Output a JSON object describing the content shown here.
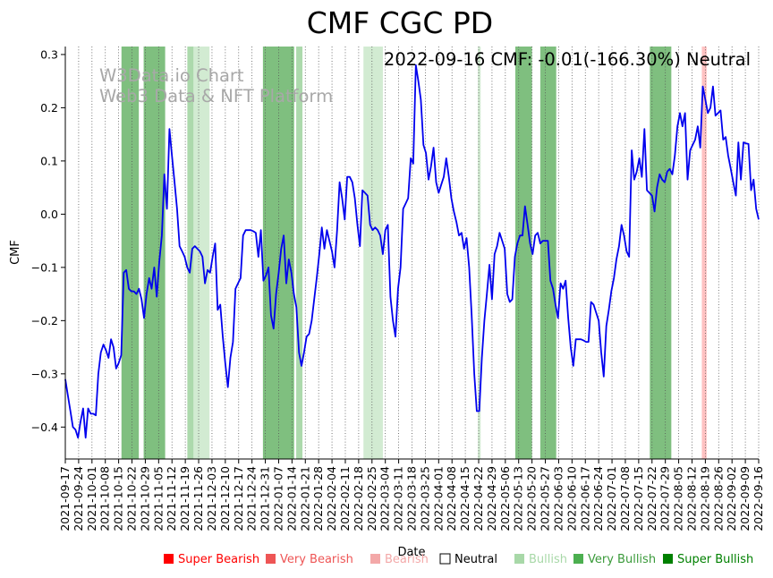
{
  "chart_data": {
    "type": "line",
    "title": "CMF CGC PD",
    "xlabel": "Date",
    "ylabel": "CMF",
    "status_text": "2022-09-16 CMF: -0.01(-166.30%) Neutral",
    "watermark": [
      "W3Data.io Chart",
      "Web3 Data & NFT Platform"
    ],
    "ylim": [
      -0.46,
      0.315
    ],
    "yticks": [
      -0.4,
      -0.3,
      -0.2,
      -0.1,
      0.0,
      0.1,
      0.2,
      0.3
    ],
    "ytick_labels": [
      "−0.4",
      "−0.3",
      "−0.2",
      "−0.1",
      "0.0",
      "0.1",
      "0.2",
      "0.3"
    ],
    "x_start": "2021-09-17",
    "x_end": "2022-09-16",
    "xtick_labels": [
      "2021-09-17",
      "2021-09-24",
      "2021-10-01",
      "2021-10-08",
      "2021-10-15",
      "2021-10-22",
      "2021-10-29",
      "2021-11-05",
      "2021-11-12",
      "2021-11-19",
      "2021-11-26",
      "2021-12-03",
      "2021-12-10",
      "2021-12-17",
      "2021-12-24",
      "2021-12-31",
      "2022-01-07",
      "2022-01-14",
      "2022-01-21",
      "2022-01-28",
      "2022-02-04",
      "2022-02-11",
      "2022-02-18",
      "2022-02-25",
      "2022-03-04",
      "2022-03-11",
      "2022-03-18",
      "2022-03-25",
      "2022-04-01",
      "2022-04-08",
      "2022-04-15",
      "2022-04-22",
      "2022-04-29",
      "2022-05-06",
      "2022-05-13",
      "2022-05-20",
      "2022-05-27",
      "2022-06-03",
      "2022-06-10",
      "2022-06-17",
      "2022-06-24",
      "2022-07-01",
      "2022-07-08",
      "2022-07-15",
      "2022-07-22",
      "2022-07-29",
      "2022-08-05",
      "2022-08-12",
      "2022-08-19",
      "2022-08-26",
      "2022-09-02",
      "2022-09-09",
      "2022-09-16"
    ],
    "grid": "vertical-dotted",
    "line_color": "#0000ee",
    "series": [
      {
        "name": "CMF",
        "values": [
          -0.31,
          -0.34,
          -0.37,
          -0.4,
          -0.405,
          -0.42,
          -0.39,
          -0.365,
          -0.42,
          -0.365,
          -0.375,
          -0.375,
          -0.378,
          -0.3,
          -0.26,
          -0.245,
          -0.255,
          -0.27,
          -0.235,
          -0.25,
          -0.29,
          -0.28,
          -0.265,
          -0.11,
          -0.105,
          -0.14,
          -0.145,
          -0.145,
          -0.15,
          -0.14,
          -0.16,
          -0.195,
          -0.15,
          -0.12,
          -0.14,
          -0.1,
          -0.155,
          -0.09,
          -0.04,
          0.075,
          0.01,
          0.16,
          0.11,
          0.06,
          0.01,
          -0.06,
          -0.07,
          -0.08,
          -0.1,
          -0.11,
          -0.065,
          -0.06,
          -0.065,
          -0.07,
          -0.08,
          -0.13,
          -0.105,
          -0.11,
          -0.08,
          -0.055,
          -0.18,
          -0.17,
          -0.23,
          -0.28,
          -0.325,
          -0.27,
          -0.24,
          -0.14,
          -0.13,
          -0.12,
          -0.04,
          -0.03,
          -0.03,
          -0.03,
          -0.032,
          -0.035,
          -0.08,
          -0.03,
          -0.125,
          -0.115,
          -0.1,
          -0.19,
          -0.215,
          -0.15,
          -0.11,
          -0.065,
          -0.04,
          -0.13,
          -0.085,
          -0.11,
          -0.15,
          -0.175,
          -0.26,
          -0.285,
          -0.26,
          -0.23,
          -0.225,
          -0.2,
          -0.16,
          -0.12,
          -0.075,
          -0.025,
          -0.065,
          -0.03,
          -0.05,
          -0.07,
          -0.1,
          -0.03,
          0.06,
          0.03,
          -0.01,
          0.07,
          0.07,
          0.06,
          0.03,
          -0.02,
          -0.06,
          0.045,
          0.04,
          0.035,
          -0.02,
          -0.03,
          -0.025,
          -0.03,
          -0.04,
          -0.075,
          -0.03,
          -0.02,
          -0.155,
          -0.2,
          -0.23,
          -0.14,
          -0.1,
          0.01,
          0.02,
          0.03,
          0.105,
          0.095,
          0.28,
          0.25,
          0.215,
          0.13,
          0.115,
          0.065,
          0.09,
          0.125,
          0.06,
          0.04,
          0.055,
          0.07,
          0.105,
          0.07,
          0.03,
          0.005,
          -0.015,
          -0.04,
          -0.035,
          -0.065,
          -0.045,
          -0.1,
          -0.19,
          -0.3,
          -0.37,
          -0.37,
          -0.27,
          -0.2,
          -0.15,
          -0.095,
          -0.16,
          -0.075,
          -0.06,
          -0.035,
          -0.05,
          -0.065,
          -0.15,
          -0.165,
          -0.16,
          -0.08,
          -0.055,
          -0.04,
          -0.04,
          0.015,
          -0.02,
          -0.055,
          -0.075,
          -0.04,
          -0.035,
          -0.055,
          -0.05,
          -0.05,
          -0.05,
          -0.125,
          -0.14,
          -0.17,
          -0.195,
          -0.13,
          -0.14,
          -0.125,
          -0.195,
          -0.25,
          -0.285,
          -0.235,
          -0.235,
          -0.235,
          -0.237,
          -0.24,
          -0.24,
          -0.165,
          -0.17,
          -0.185,
          -0.2,
          -0.26,
          -0.305,
          -0.21,
          -0.18,
          -0.145,
          -0.12,
          -0.085,
          -0.06,
          -0.02,
          -0.04,
          -0.07,
          -0.08,
          0.12,
          0.065,
          0.08,
          0.105,
          0.07,
          0.16,
          0.045,
          0.04,
          0.035,
          0.005,
          0.05,
          0.075,
          0.065,
          0.06,
          0.08,
          0.085,
          0.075,
          0.11,
          0.165,
          0.19,
          0.165,
          0.19,
          0.065,
          0.12,
          0.13,
          0.14,
          0.165,
          0.125,
          0.24,
          0.215,
          0.19,
          0.2,
          0.24,
          0.185,
          0.19,
          0.195,
          0.14,
          0.145,
          0.11,
          0.085,
          0.06,
          0.035,
          0.135,
          0.065,
          0.135,
          0.133,
          0.132,
          0.045,
          0.065,
          0.01,
          -0.01
        ]
      }
    ],
    "bands": [
      {
        "start": 0.081,
        "end": 0.106,
        "level": "very_bullish"
      },
      {
        "start": 0.113,
        "end": 0.144,
        "level": "very_bullish"
      },
      {
        "start": 0.176,
        "end": 0.185,
        "level": "bullish"
      },
      {
        "start": 0.185,
        "end": 0.208,
        "level": "neutral_bullish"
      },
      {
        "start": 0.285,
        "end": 0.33,
        "level": "very_bullish"
      },
      {
        "start": 0.333,
        "end": 0.342,
        "level": "bullish"
      },
      {
        "start": 0.43,
        "end": 0.458,
        "level": "neutral_bullish"
      },
      {
        "start": 0.595,
        "end": 0.599,
        "level": "neutral_bullish"
      },
      {
        "start": 0.649,
        "end": 0.673,
        "level": "very_bullish"
      },
      {
        "start": 0.685,
        "end": 0.708,
        "level": "very_bullish"
      },
      {
        "start": 0.843,
        "end": 0.874,
        "level": "very_bullish"
      },
      {
        "start": 0.918,
        "end": 0.925,
        "level": "bearish"
      }
    ],
    "band_colors": {
      "very_bullish": "#7fbf7f",
      "bullish": "#acd9ac",
      "neutral_bullish": "#d2ebd2",
      "bearish": "#ffc2c2"
    },
    "legend": [
      {
        "label": "Super Bearish",
        "color": "#ff0000",
        "box": "#ff0000"
      },
      {
        "label": "Very Bearish",
        "color": "#ee5555",
        "box": "#ee5555"
      },
      {
        "label": "Bearish",
        "color": "#f3a8a8",
        "box": "#f3a8a8"
      },
      {
        "label": "Neutral",
        "color": "#000000",
        "box": "none"
      },
      {
        "label": "Bullish",
        "color": "#a8d8a8",
        "box": "#a8d8a8"
      },
      {
        "label": "Very Bullish",
        "color": "#3a9a3a",
        "box": "#4caf50"
      },
      {
        "label": "Super Bullish",
        "color": "#008000",
        "box": "#008000"
      }
    ]
  }
}
